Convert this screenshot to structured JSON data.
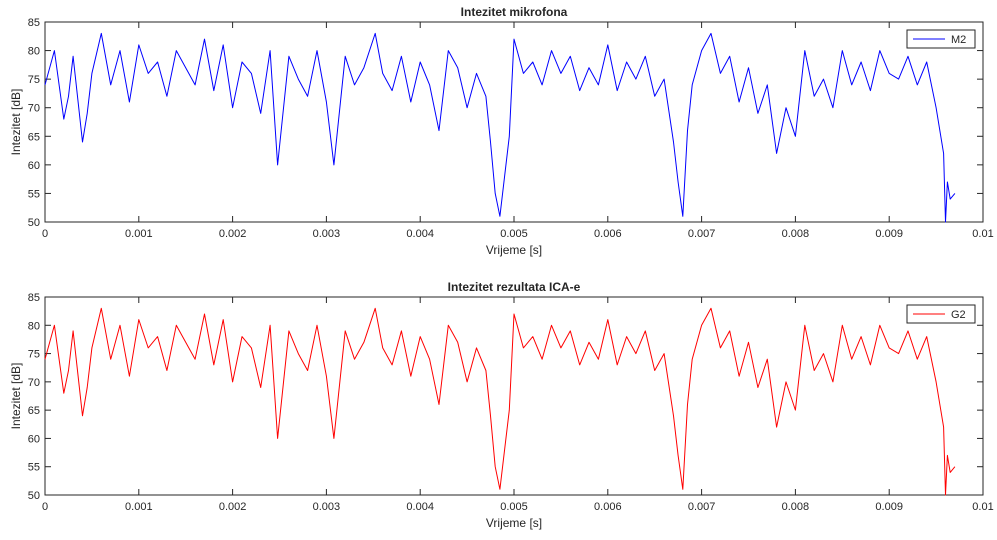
{
  "chart_data": [
    {
      "type": "line",
      "title": "Intezitet mikrofona",
      "xlabel": "Vrijeme [s]",
      "ylabel": "Intezitet [dB]",
      "xlim": [
        0,
        0.01
      ],
      "ylim": [
        50,
        85
      ],
      "xticks": [
        "0",
        "0.001",
        "0.002",
        "0.003",
        "0.004",
        "0.005",
        "0.006",
        "0.007",
        "0.008",
        "0.009",
        "0.01"
      ],
      "yticks": [
        "50",
        "55",
        "60",
        "65",
        "70",
        "75",
        "80",
        "85"
      ],
      "grid": false,
      "legend_position": "top-right",
      "series": [
        {
          "name": "M2",
          "color": "#0000ff",
          "x": [
            0,
            0.0001,
            0.0002,
            0.00025,
            0.0003,
            0.0004,
            0.00045,
            0.0005,
            0.0006,
            0.0007,
            0.0008,
            0.0009,
            0.001,
            0.0011,
            0.0012,
            0.0013,
            0.0014,
            0.0015,
            0.0016,
            0.0017,
            0.0018,
            0.0019,
            0.002,
            0.0021,
            0.0022,
            0.0023,
            0.0024,
            0.00248,
            0.0026,
            0.0027,
            0.0028,
            0.0029,
            0.003,
            0.00308,
            0.0032,
            0.0033,
            0.0034,
            0.00352,
            0.0036,
            0.0037,
            0.0038,
            0.0039,
            0.004,
            0.0041,
            0.0042,
            0.0043,
            0.0044,
            0.0045,
            0.0046,
            0.0047,
            0.00475,
            0.0048,
            0.00485,
            0.0049,
            0.00495,
            0.005,
            0.0051,
            0.0052,
            0.0053,
            0.0054,
            0.0055,
            0.0056,
            0.0057,
            0.0058,
            0.0059,
            0.006,
            0.0061,
            0.0062,
            0.0063,
            0.0064,
            0.0065,
            0.0066,
            0.0067,
            0.00675,
            0.0068,
            0.00685,
            0.0069,
            0.007,
            0.0071,
            0.0072,
            0.0073,
            0.0074,
            0.0075,
            0.0076,
            0.0077,
            0.0078,
            0.0079,
            0.008,
            0.0081,
            0.0082,
            0.0083,
            0.0084,
            0.0085,
            0.0086,
            0.0087,
            0.0088,
            0.0089,
            0.009,
            0.0091,
            0.0092,
            0.0093,
            0.0094,
            0.0095,
            0.00958,
            0.0096,
            0.00962,
            0.00965,
            0.0097
          ],
          "values": [
            74,
            80,
            68,
            72,
            79,
            64,
            69,
            76,
            83,
            74,
            80,
            71,
            81,
            76,
            78,
            72,
            80,
            77,
            74,
            82,
            73,
            81,
            70,
            78,
            76,
            69,
            80,
            60,
            79,
            75,
            72,
            80,
            71,
            60,
            79,
            74,
            77,
            83,
            76,
            73,
            79,
            71,
            78,
            74,
            66,
            80,
            77,
            70,
            76,
            72,
            64,
            55,
            51,
            58,
            65,
            82,
            76,
            78,
            74,
            80,
            76,
            79,
            73,
            77,
            74,
            81,
            73,
            78,
            75,
            79,
            72,
            75,
            64,
            57,
            51,
            66,
            74,
            80,
            83,
            76,
            79,
            71,
            77,
            69,
            74,
            62,
            70,
            65,
            80,
            72,
            75,
            70,
            80,
            74,
            78,
            73,
            80,
            76,
            75,
            79,
            74,
            78,
            70,
            62,
            50,
            57,
            54,
            55
          ]
        }
      ]
    },
    {
      "type": "line",
      "title": "Intezitet rezultata ICA-e",
      "xlabel": "Vrijeme [s]",
      "ylabel": "Intezitet [dB]",
      "xlim": [
        0,
        0.01
      ],
      "ylim": [
        50,
        85
      ],
      "xticks": [
        "0",
        "0.001",
        "0.002",
        "0.003",
        "0.004",
        "0.005",
        "0.006",
        "0.007",
        "0.008",
        "0.009",
        "0.01"
      ],
      "yticks": [
        "50",
        "55",
        "60",
        "65",
        "70",
        "75",
        "80",
        "85"
      ],
      "grid": false,
      "legend_position": "top-right",
      "series": [
        {
          "name": "G2",
          "color": "#ff0000",
          "x": [
            0,
            0.0001,
            0.0002,
            0.00025,
            0.0003,
            0.0004,
            0.00045,
            0.0005,
            0.0006,
            0.0007,
            0.0008,
            0.0009,
            0.001,
            0.0011,
            0.0012,
            0.0013,
            0.0014,
            0.0015,
            0.0016,
            0.0017,
            0.0018,
            0.0019,
            0.002,
            0.0021,
            0.0022,
            0.0023,
            0.0024,
            0.00248,
            0.0026,
            0.0027,
            0.0028,
            0.0029,
            0.003,
            0.00308,
            0.0032,
            0.0033,
            0.0034,
            0.00352,
            0.0036,
            0.0037,
            0.0038,
            0.0039,
            0.004,
            0.0041,
            0.0042,
            0.0043,
            0.0044,
            0.0045,
            0.0046,
            0.0047,
            0.00475,
            0.0048,
            0.00485,
            0.0049,
            0.00495,
            0.005,
            0.0051,
            0.0052,
            0.0053,
            0.0054,
            0.0055,
            0.0056,
            0.0057,
            0.0058,
            0.0059,
            0.006,
            0.0061,
            0.0062,
            0.0063,
            0.0064,
            0.0065,
            0.0066,
            0.0067,
            0.00675,
            0.0068,
            0.00685,
            0.0069,
            0.007,
            0.0071,
            0.0072,
            0.0073,
            0.0074,
            0.0075,
            0.0076,
            0.0077,
            0.0078,
            0.0079,
            0.008,
            0.0081,
            0.0082,
            0.0083,
            0.0084,
            0.0085,
            0.0086,
            0.0087,
            0.0088,
            0.0089,
            0.009,
            0.0091,
            0.0092,
            0.0093,
            0.0094,
            0.0095,
            0.00958,
            0.0096,
            0.00962,
            0.00965,
            0.0097
          ],
          "values": [
            74,
            80,
            68,
            72,
            79,
            64,
            69,
            76,
            83,
            74,
            80,
            71,
            81,
            76,
            78,
            72,
            80,
            77,
            74,
            82,
            73,
            81,
            70,
            78,
            76,
            69,
            80,
            60,
            79,
            75,
            72,
            80,
            71,
            60,
            79,
            74,
            77,
            83,
            76,
            73,
            79,
            71,
            78,
            74,
            66,
            80,
            77,
            70,
            76,
            72,
            64,
            55,
            51,
            58,
            65,
            82,
            76,
            78,
            74,
            80,
            76,
            79,
            73,
            77,
            74,
            81,
            73,
            78,
            75,
            79,
            72,
            75,
            64,
            57,
            51,
            66,
            74,
            80,
            83,
            76,
            79,
            71,
            77,
            69,
            74,
            62,
            70,
            65,
            80,
            72,
            75,
            70,
            80,
            74,
            78,
            73,
            80,
            76,
            75,
            79,
            74,
            78,
            70,
            62,
            50,
            57,
            54,
            55
          ]
        }
      ]
    }
  ]
}
